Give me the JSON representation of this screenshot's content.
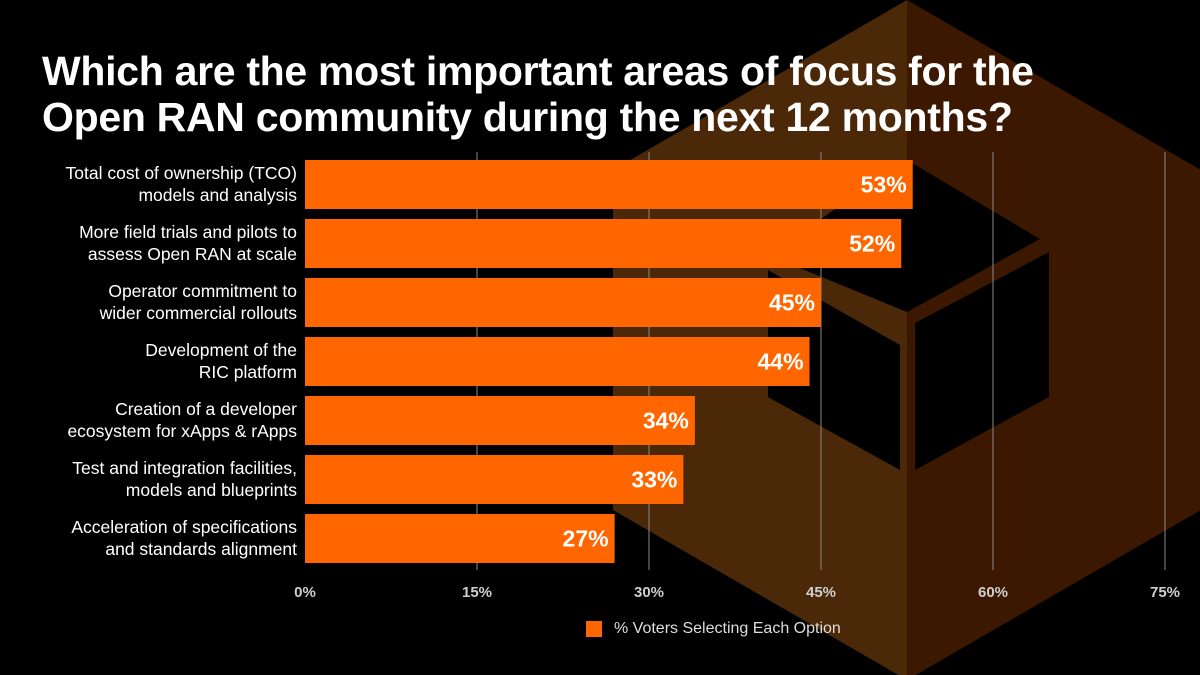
{
  "colors": {
    "bar": "#ff6600",
    "background": "#000000",
    "grid": "#8a8a8a",
    "logo_left": "#4a2808",
    "logo_right": "#3c1800"
  },
  "chart_data": {
    "type": "bar",
    "orientation": "horizontal",
    "title": "Which are the most important areas of focus for the Open RAN community during the next 12 months?",
    "title_lines": [
      "Which are the most important areas of focus for the",
      "Open RAN community during the next 12 months?"
    ],
    "categories": [
      [
        "Total cost of ownership (TCO)",
        "models and analysis"
      ],
      [
        "More field trials and pilots to",
        "assess Open RAN at scale"
      ],
      [
        "Operator commitment to",
        "wider commercial rollouts"
      ],
      [
        "Development of the",
        "RIC platform"
      ],
      [
        "Creation of a developer",
        "ecosystem for xApps & rApps"
      ],
      [
        "Test and integration facilities,",
        "models and blueprints"
      ],
      [
        "Acceleration of specifications",
        "and standards alignment"
      ]
    ],
    "series": [
      {
        "name": "% Voters Selecting Each Option",
        "values": [
          53,
          52,
          45,
          44,
          34,
          33,
          27
        ]
      }
    ],
    "data_labels": [
      "53%",
      "52%",
      "45%",
      "44%",
      "34%",
      "33%",
      "27%"
    ],
    "xlim": [
      0,
      75
    ],
    "xticks": [
      0,
      15,
      30,
      45,
      60,
      75
    ],
    "xtick_labels": [
      "0%",
      "15%",
      "30%",
      "45%",
      "60%",
      "75%"
    ],
    "grid": true,
    "legend": "bottom-center"
  }
}
